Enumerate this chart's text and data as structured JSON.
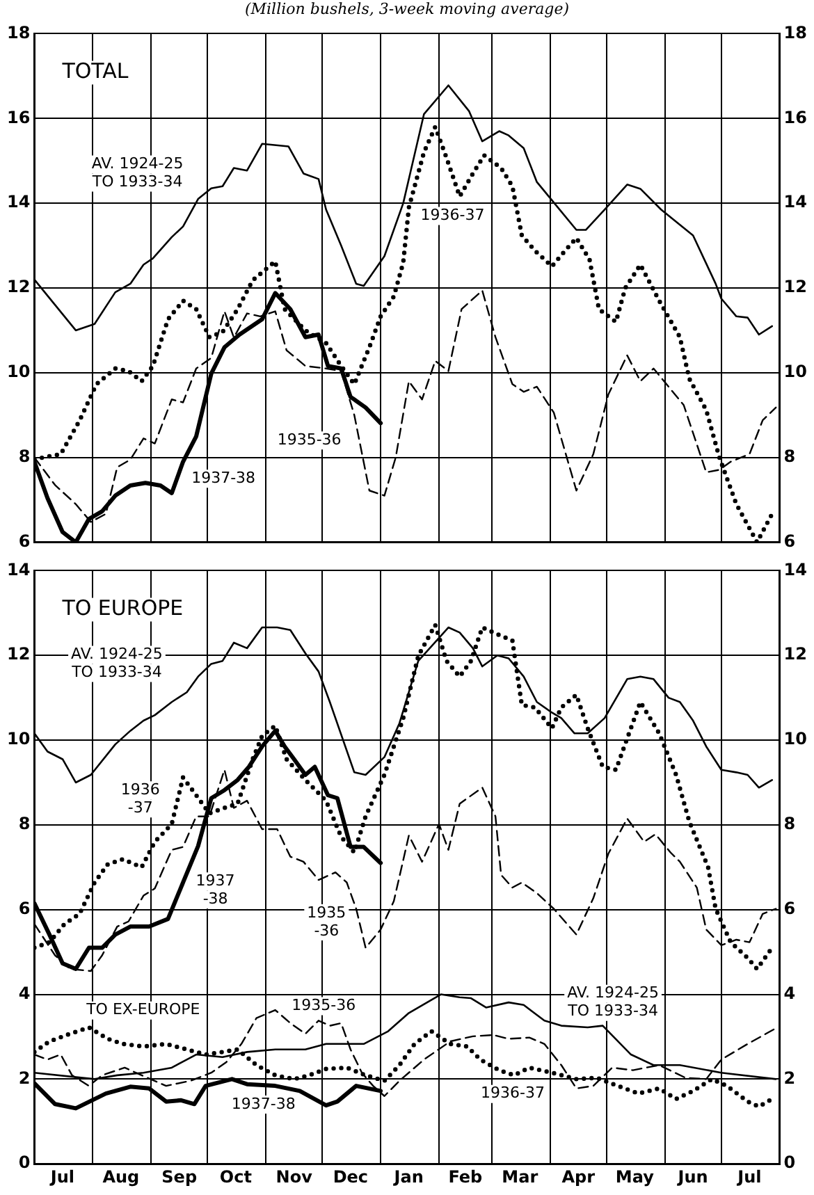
{
  "chart_data": [
    {
      "type": "line",
      "title": "TOTAL",
      "subtitle": "(Million bushels, 3-week moving average)",
      "xlim": [
        "1937-07-01",
        "1938-08-01"
      ],
      "xticks": [
        {
          "value": "1937-07-01",
          "label": null
        },
        {
          "value": "1937-08-01",
          "label": null
        },
        {
          "value": "1937-09-01",
          "label": null
        },
        {
          "value": "1937-10-01",
          "label": null
        },
        {
          "value": "1937-11-01",
          "label": null
        },
        {
          "value": "1937-12-01",
          "label": null
        },
        {
          "value": "1938-01-01",
          "label": null
        },
        {
          "value": "1938-02-01",
          "label": null
        },
        {
          "value": "1938-03-01",
          "label": null
        },
        {
          "value": "1938-04-01",
          "label": null
        },
        {
          "value": "1938-05-01",
          "label": null
        },
        {
          "value": "1938-06-01",
          "label": null
        },
        {
          "value": "1938-07-01",
          "label": null
        },
        {
          "value": "1938-08-01",
          "label": null
        }
      ],
      "ylim": [
        6,
        18
      ],
      "yticks": [
        6,
        8,
        10,
        12,
        14,
        16,
        18
      ],
      "y2lim": [
        6,
        18
      ],
      "y2ticks": [
        6,
        8,
        10,
        12,
        14,
        16,
        18
      ],
      "grid": true,
      "legend": false,
      "tick_labels": "y",
      "marker": "none",
      "series": [
        {
          "name": "AV. 1924-25\nTO 1933-34",
          "color": "#000000",
          "line_style": "solid",
          "x": [
            "1937-07-01",
            "1937-07-23",
            "1937-08-02",
            "1937-08-13",
            "1937-08-21",
            "1937-08-28",
            "1937-09-02",
            "1937-09-12",
            "1937-09-18",
            "1937-09-26",
            "1937-10-03",
            "1937-10-09",
            "1937-10-15",
            "1937-10-22",
            "1937-10-30",
            "1937-11-13",
            "1937-11-21",
            "1937-11-29",
            "1937-12-03",
            "1937-12-11",
            "1937-12-19",
            "1937-12-23",
            "1938-01-03",
            "1938-01-13",
            "1938-01-24",
            "1938-02-06",
            "1938-02-17",
            "1938-02-24",
            "1938-03-05",
            "1938-03-10",
            "1938-03-18",
            "1938-03-25",
            "1938-04-02",
            "1938-04-15",
            "1938-04-20",
            "1938-04-30",
            "1938-05-12",
            "1938-05-19",
            "1938-05-30",
            "1938-06-16",
            "1938-06-28",
            "1938-07-01",
            "1938-07-09",
            "1938-07-15",
            "1938-07-21",
            "1938-07-28"
          ],
          "values": [
            12.2,
            11.0,
            11.15,
            11.9,
            12.1,
            12.55,
            12.7,
            13.2,
            13.45,
            14.1,
            14.35,
            14.4,
            14.83,
            14.77,
            15.4,
            15.34,
            14.7,
            14.57,
            13.85,
            13.0,
            12.1,
            12.05,
            12.75,
            14.0,
            16.1,
            16.78,
            16.17,
            15.46,
            15.7,
            15.6,
            15.3,
            14.5,
            14.07,
            13.37,
            13.37,
            13.85,
            14.44,
            14.34,
            13.85,
            13.24,
            12.1,
            11.75,
            11.33,
            11.3,
            10.9,
            11.1
          ]
        },
        {
          "name": "1935-36",
          "color": "#000000",
          "line_style": "dashed",
          "x": [
            "1937-07-01",
            "1937-07-12",
            "1937-07-23",
            "1937-07-31",
            "1937-08-08",
            "1937-08-14",
            "1937-08-21",
            "1937-08-28",
            "1937-09-03",
            "1937-09-12",
            "1937-09-18",
            "1937-09-25",
            "1937-10-03",
            "1937-10-10",
            "1937-10-15",
            "1937-10-22",
            "1937-10-29",
            "1937-11-06",
            "1937-11-12",
            "1937-11-22",
            "1937-12-03",
            "1937-12-11",
            "1937-12-18",
            "1937-12-26",
            "1938-01-03",
            "1938-01-09",
            "1938-01-16",
            "1938-01-23",
            "1938-01-30",
            "1938-02-06",
            "1938-02-13",
            "1938-02-24",
            "1938-03-03",
            "1938-03-12",
            "1938-03-18",
            "1938-03-25",
            "1938-04-03",
            "1938-04-15",
            "1938-04-24",
            "1938-05-02",
            "1938-05-12",
            "1938-05-19",
            "1938-05-26",
            "1938-06-11",
            "1938-06-23",
            "1938-06-30",
            "1938-07-06",
            "1938-07-16",
            "1938-07-23",
            "1938-07-30"
          ],
          "values": [
            8.0,
            7.35,
            6.9,
            6.48,
            6.67,
            7.77,
            7.95,
            8.45,
            8.33,
            9.37,
            9.3,
            10.1,
            10.35,
            11.45,
            10.83,
            11.4,
            11.33,
            11.45,
            10.53,
            10.16,
            10.1,
            10.04,
            9.0,
            7.22,
            7.1,
            8.0,
            9.8,
            9.37,
            10.28,
            10.04,
            11.5,
            11.94,
            10.84,
            9.73,
            9.55,
            9.67,
            9.06,
            7.22,
            8.08,
            9.49,
            10.41,
            9.8,
            10.1,
            9.24,
            7.65,
            7.71,
            7.9,
            8.08,
            8.88,
            9.18
          ]
        },
        {
          "name": "1936-37",
          "color": "#000000",
          "line_style": "dotted",
          "x": [
            "1937-07-01",
            "1937-07-15",
            "1937-07-25",
            "1937-08-03",
            "1937-08-13",
            "1937-08-20",
            "1937-08-27",
            "1937-09-02",
            "1937-09-10",
            "1937-09-18",
            "1937-09-25",
            "1937-10-02",
            "1937-10-09",
            "1937-10-17",
            "1937-10-25",
            "1937-11-06",
            "1937-11-11",
            "1937-11-22",
            "1937-12-03",
            "1937-12-11",
            "1937-12-18",
            "1937-12-26",
            "1938-01-01",
            "1938-01-08",
            "1938-01-13",
            "1938-01-16",
            "1938-01-24",
            "1938-01-30",
            "1938-02-05",
            "1938-02-12",
            "1938-02-19",
            "1938-02-25",
            "1938-03-06",
            "1938-03-12",
            "1938-03-17",
            "1938-03-24",
            "1938-04-02",
            "1938-04-09",
            "1938-04-15",
            "1938-04-22",
            "1938-04-27",
            "1938-05-06",
            "1938-05-11",
            "1938-05-19",
            "1938-05-29",
            "1938-06-09",
            "1938-06-14",
            "1938-06-23",
            "1938-06-30",
            "1938-07-09",
            "1938-07-20",
            "1938-07-28"
          ],
          "values": [
            7.96,
            8.08,
            8.87,
            9.73,
            10.1,
            10.04,
            9.8,
            10.16,
            11.26,
            11.7,
            11.5,
            10.84,
            10.96,
            11.5,
            12.18,
            12.63,
            11.5,
            11.0,
            10.7,
            10.16,
            9.73,
            10.6,
            11.33,
            11.8,
            12.6,
            13.9,
            15.2,
            15.8,
            15.07,
            14.16,
            14.7,
            15.13,
            14.83,
            14.4,
            13.24,
            12.88,
            12.51,
            12.88,
            13.18,
            12.67,
            11.5,
            11.2,
            12.0,
            12.55,
            11.7,
            10.84,
            9.86,
            9.12,
            8.0,
            6.9,
            6.0,
            6.67
          ]
        },
        {
          "name": "1937-38",
          "color": "#000000",
          "line_style": "solid",
          "x": [
            "1937-07-01",
            "1937-07-08",
            "1937-07-16",
            "1937-07-23",
            "1937-07-30",
            "1937-08-06",
            "1937-08-13",
            "1937-08-21",
            "1937-08-29",
            "1937-09-06",
            "1937-09-12",
            "1937-09-18",
            "1937-09-25",
            "1937-10-03",
            "1937-10-10",
            "1937-10-18",
            "1937-10-30",
            "1937-11-06",
            "1937-11-14",
            "1937-11-22",
            "1937-11-29",
            "1937-12-04",
            "1937-12-11",
            "1937-12-16",
            "1937-12-24",
            "1938-01-01"
          ],
          "values": [
            7.9,
            7.04,
            6.24,
            6.0,
            6.55,
            6.73,
            7.1,
            7.34,
            7.4,
            7.34,
            7.16,
            7.9,
            8.5,
            9.98,
            10.6,
            10.9,
            11.26,
            11.88,
            11.5,
            10.84,
            10.9,
            10.16,
            10.1,
            9.43,
            9.18,
            8.81
          ]
        }
      ]
    },
    {
      "type": "line",
      "title": "TO EUROPE",
      "xlim": [
        "1937-07-01",
        "1938-08-01"
      ],
      "xticks": [
        {
          "value": "1937-07-01",
          "label": null
        },
        {
          "value": "1937-07-16",
          "label": "Jul"
        },
        {
          "value": "1937-08-01",
          "label": null
        },
        {
          "value": "1937-08-16",
          "label": "Aug"
        },
        {
          "value": "1937-09-01",
          "label": null
        },
        {
          "value": "1937-09-16",
          "label": "Sep"
        },
        {
          "value": "1937-10-01",
          "label": null
        },
        {
          "value": "1937-10-16",
          "label": "Oct"
        },
        {
          "value": "1937-11-01",
          "label": null
        },
        {
          "value": "1937-11-16",
          "label": "Nov"
        },
        {
          "value": "1937-12-01",
          "label": null
        },
        {
          "value": "1937-12-16",
          "label": "Dec"
        },
        {
          "value": "1938-01-01",
          "label": null
        },
        {
          "value": "1938-01-16",
          "label": "Jan"
        },
        {
          "value": "1938-02-01",
          "label": null
        },
        {
          "value": "1938-02-15",
          "label": "Feb"
        },
        {
          "value": "1938-03-01",
          "label": null
        },
        {
          "value": "1938-03-16",
          "label": "Mar"
        },
        {
          "value": "1938-04-01",
          "label": null
        },
        {
          "value": "1938-04-16",
          "label": "Apr"
        },
        {
          "value": "1938-05-01",
          "label": null
        },
        {
          "value": "1938-05-16",
          "label": "May"
        },
        {
          "value": "1938-06-01",
          "label": null
        },
        {
          "value": "1938-06-16",
          "label": "Jun"
        },
        {
          "value": "1938-07-01",
          "label": null
        },
        {
          "value": "1938-07-16",
          "label": "Jul"
        },
        {
          "value": "1938-08-01",
          "label": null
        }
      ],
      "ylim": [
        0,
        14
      ],
      "yticks": [
        0,
        2,
        4,
        6,
        8,
        10,
        12,
        14
      ],
      "y2lim": [
        0,
        14
      ],
      "y2ticks": [
        0,
        2,
        4,
        6,
        8,
        10,
        12,
        14
      ],
      "grid": true,
      "legend": false,
      "marker": "none",
      "series": [
        {
          "name": "AV. 1924-25\nTO 1933-34",
          "color": "#000000",
          "line_style": "solid",
          "x": [
            "1937-07-01",
            "1937-07-08",
            "1937-07-16",
            "1937-07-23",
            "1937-07-31",
            "1937-08-13",
            "1937-08-21",
            "1937-08-28",
            "1937-09-03",
            "1937-09-12",
            "1937-09-20",
            "1937-09-26",
            "1937-10-03",
            "1937-10-09",
            "1937-10-15",
            "1937-10-22",
            "1937-10-30",
            "1937-11-07",
            "1937-11-14",
            "1937-11-22",
            "1937-11-29",
            "1937-12-05",
            "1937-12-18",
            "1937-12-24",
            "1938-01-03",
            "1938-01-11",
            "1938-01-21",
            "1938-02-06",
            "1938-02-12",
            "1938-02-19",
            "1938-02-24",
            "1938-03-04",
            "1938-03-10",
            "1938-03-18",
            "1938-03-25",
            "1938-04-02",
            "1938-04-07",
            "1938-04-14",
            "1938-04-21",
            "1938-04-30",
            "1938-05-12",
            "1938-05-19",
            "1938-05-26",
            "1938-06-03",
            "1938-06-09",
            "1938-06-16",
            "1938-06-23",
            "1938-07-01",
            "1938-07-09",
            "1938-07-15",
            "1938-07-21",
            "1938-07-28"
          ],
          "values": [
            10.16,
            9.73,
            9.55,
            9.0,
            9.18,
            9.9,
            10.22,
            10.46,
            10.59,
            10.9,
            11.13,
            11.5,
            11.8,
            11.87,
            12.3,
            12.17,
            12.66,
            12.66,
            12.6,
            12.05,
            11.62,
            10.9,
            9.24,
            9.18,
            9.6,
            10.4,
            11.87,
            12.66,
            12.54,
            12.17,
            11.74,
            12.0,
            11.93,
            11.5,
            10.9,
            10.65,
            10.52,
            10.16,
            10.16,
            10.52,
            11.44,
            11.5,
            11.44,
            11.0,
            10.9,
            10.46,
            9.85,
            9.3,
            9.24,
            9.18,
            8.88,
            9.06
          ]
        },
        {
          "name": "1935\n-36",
          "color": "#000000",
          "line_style": "dashed",
          "x": [
            "1937-07-01",
            "1937-07-12",
            "1937-07-20",
            "1937-07-31",
            "1937-08-06",
            "1937-08-14",
            "1937-08-20",
            "1937-08-28",
            "1937-09-03",
            "1937-09-12",
            "1937-09-18",
            "1937-09-25",
            "1937-10-02",
            "1937-10-10",
            "1937-10-15",
            "1937-10-22",
            "1937-10-30",
            "1937-11-07",
            "1937-11-14",
            "1937-11-21",
            "1937-11-29",
            "1937-12-08",
            "1937-12-14",
            "1937-12-19",
            "1937-12-24",
            "1938-01-01",
            "1938-01-08",
            "1938-01-16",
            "1938-01-23",
            "1938-02-01",
            "1938-02-06",
            "1938-02-12",
            "1938-02-24",
            "1938-03-03",
            "1938-03-06",
            "1938-03-12",
            "1938-03-17",
            "1938-03-25",
            "1938-04-03",
            "1938-04-15",
            "1938-04-24",
            "1938-05-02",
            "1938-05-12",
            "1938-05-21",
            "1938-05-27",
            "1938-06-04",
            "1938-06-09",
            "1938-06-18",
            "1938-06-23",
            "1938-07-01",
            "1938-07-09",
            "1938-07-16",
            "1938-07-23",
            "1938-07-30"
          ],
          "values": [
            5.66,
            4.92,
            4.6,
            4.55,
            4.92,
            5.6,
            5.72,
            6.33,
            6.5,
            7.41,
            7.48,
            8.2,
            8.2,
            9.3,
            8.4,
            8.57,
            7.9,
            7.9,
            7.25,
            7.13,
            6.7,
            6.88,
            6.64,
            6.02,
            5.1,
            5.53,
            6.2,
            7.75,
            7.13,
            8.02,
            7.41,
            8.5,
            8.88,
            8.2,
            6.82,
            6.52,
            6.64,
            6.39,
            6.02,
            5.41,
            6.27,
            7.32,
            8.15,
            7.6,
            7.78,
            7.35,
            7.13,
            6.52,
            5.53,
            5.16,
            5.29,
            5.23,
            5.9,
            6.02
          ]
        },
        {
          "name": "1936\n-37",
          "color": "#000000",
          "line_style": "dotted",
          "x": [
            "1937-07-01",
            "1937-07-09",
            "1937-07-17",
            "1937-07-25",
            "1937-08-02",
            "1937-08-09",
            "1937-08-17",
            "1937-08-27",
            "1937-09-03",
            "1937-09-12",
            "1937-09-18",
            "1937-09-25",
            "1937-10-02",
            "1937-10-10",
            "1937-10-17",
            "1937-10-25",
            "1937-10-30",
            "1937-11-06",
            "1937-11-12",
            "1937-11-22",
            "1937-12-03",
            "1937-12-11",
            "1937-12-18",
            "1937-12-24",
            "1938-01-03",
            "1938-01-13",
            "1938-01-21",
            "1938-01-30",
            "1938-02-05",
            "1938-02-12",
            "1938-02-18",
            "1938-02-24",
            "1938-03-05",
            "1938-03-12",
            "1938-03-17",
            "1938-03-24",
            "1938-04-02",
            "1938-04-07",
            "1938-04-15",
            "1938-04-21",
            "1938-04-29",
            "1938-05-06",
            "1938-05-12",
            "1938-05-19",
            "1938-05-29",
            "1938-06-07",
            "1938-06-14",
            "1938-06-24",
            "1938-06-28",
            "1938-07-06",
            "1938-07-15",
            "1938-07-20",
            "1938-07-28"
          ],
          "values": [
            5.1,
            5.23,
            5.66,
            5.9,
            6.64,
            7.07,
            7.19,
            7.0,
            7.6,
            8.02,
            9.12,
            8.7,
            8.27,
            8.4,
            8.5,
            9.55,
            10.1,
            10.34,
            9.55,
            9.06,
            8.57,
            7.72,
            7.35,
            8.2,
            9.18,
            10.52,
            11.99,
            12.72,
            11.87,
            11.5,
            11.87,
            12.66,
            12.48,
            12.35,
            10.83,
            10.77,
            10.28,
            10.77,
            11.07,
            10.28,
            9.37,
            9.3,
            10.04,
            10.9,
            10.16,
            9.18,
            8.08,
            7.0,
            6.02,
            5.23,
            4.86,
            4.6,
            5.1
          ]
        },
        {
          "name": "1937\n-38",
          "color": "#000000",
          "line_style": "solid",
          "x": [
            "1937-07-01",
            "1937-07-09",
            "1937-07-16",
            "1937-07-23",
            "1937-07-30",
            "1937-08-06",
            "1937-08-13",
            "1937-08-21",
            "1937-08-31",
            "1937-09-10",
            "1937-09-18",
            "1937-09-26",
            "1937-10-03",
            "1937-10-10",
            "1937-10-17",
            "1937-10-23",
            "1937-10-30",
            "1937-11-06",
            "1937-11-11",
            "1937-11-16",
            "1937-11-22",
            "1937-11-27",
            "1937-12-04",
            "1937-12-09",
            "1937-12-16",
            "1937-12-23",
            "1938-01-01"
          ],
          "values": [
            6.15,
            5.41,
            4.73,
            4.6,
            5.1,
            5.1,
            5.41,
            5.6,
            5.6,
            5.78,
            6.64,
            7.5,
            8.63,
            8.82,
            9.06,
            9.37,
            9.85,
            10.22,
            9.85,
            9.55,
            9.18,
            9.37,
            8.7,
            8.63,
            7.48,
            7.48,
            7.1
          ]
        },
        {
          "name": "AV. 1924-25\nTO 1933-34",
          "color": "#000000",
          "line_style": "solid",
          "x": [
            "1937-07-01",
            "1937-08-02",
            "1937-08-14",
            "1937-08-28",
            "1937-09-12",
            "1937-09-25",
            "1937-10-09",
            "1937-10-22",
            "1937-11-06",
            "1937-11-22",
            "1937-12-03",
            "1937-12-23",
            "1938-01-05",
            "1938-01-16",
            "1938-02-02",
            "1938-02-12",
            "1938-02-18",
            "1938-02-26",
            "1938-03-10",
            "1938-03-18",
            "1938-03-29",
            "1938-04-07",
            "1938-04-21",
            "1938-04-29",
            "1938-05-14",
            "1938-05-26",
            "1938-06-09",
            "1938-07-01",
            "1938-07-30"
          ],
          "values": [
            2.15,
            2.0,
            2.09,
            2.15,
            2.27,
            2.58,
            2.52,
            2.64,
            2.7,
            2.7,
            2.83,
            2.83,
            3.13,
            3.56,
            4.0,
            3.93,
            3.91,
            3.69,
            3.81,
            3.75,
            3.38,
            3.26,
            3.22,
            3.26,
            2.58,
            2.33,
            2.33,
            2.15,
            2.0
          ]
        },
        {
          "name": "1935-36",
          "color": "#000000",
          "line_style": "dashed",
          "x": [
            "1937-07-01",
            "1937-07-08",
            "1937-07-15",
            "1937-07-21",
            "1937-07-30",
            "1937-08-06",
            "1937-08-18",
            "1937-08-27",
            "1937-09-09",
            "1937-09-22",
            "1937-10-03",
            "1937-10-11",
            "1937-10-19",
            "1937-10-27",
            "1937-11-06",
            "1937-11-14",
            "1937-11-22",
            "1937-11-29",
            "1937-12-05",
            "1937-12-11",
            "1937-12-16",
            "1937-12-22",
            "1937-12-28",
            "1938-01-03",
            "1938-01-11",
            "1938-01-24",
            "1938-02-07",
            "1938-02-19",
            "1938-03-02",
            "1938-03-10",
            "1938-03-21",
            "1938-03-29",
            "1938-04-07",
            "1938-04-15",
            "1938-04-24",
            "1938-05-04",
            "1938-05-15",
            "1938-05-29",
            "1938-06-12",
            "1938-06-23",
            "1938-07-01",
            "1938-07-15",
            "1938-07-30"
          ],
          "values": [
            2.58,
            2.46,
            2.58,
            2.09,
            1.84,
            2.09,
            2.27,
            2.09,
            1.84,
            1.96,
            2.15,
            2.4,
            2.83,
            3.44,
            3.63,
            3.32,
            3.07,
            3.38,
            3.26,
            3.32,
            2.7,
            2.15,
            1.84,
            1.6,
            1.96,
            2.46,
            2.89,
            3.01,
            3.04,
            2.95,
            2.98,
            2.83,
            2.33,
            1.78,
            1.84,
            2.27,
            2.21,
            2.33,
            2.03,
            2.0,
            2.46,
            2.83,
            3.2
          ]
        },
        {
          "name": "1936-37",
          "color": "#000000",
          "line_style": "dotted",
          "x": [
            "1937-07-01",
            "1937-07-09",
            "1937-07-20",
            "1937-07-30",
            "1937-08-09",
            "1937-08-17",
            "1937-08-28",
            "1937-09-09",
            "1937-09-20",
            "1937-09-30",
            "1937-10-09",
            "1937-10-17",
            "1937-10-27",
            "1937-11-06",
            "1937-11-16",
            "1937-11-24",
            "1937-12-03",
            "1937-12-14",
            "1937-12-24",
            "1938-01-03",
            "1938-01-11",
            "1938-01-19",
            "1938-01-28",
            "1938-02-07",
            "1938-02-16",
            "1938-02-23",
            "1938-03-05",
            "1938-03-13",
            "1938-03-21",
            "1938-04-02",
            "1938-04-15",
            "1938-04-26",
            "1938-05-07",
            "1938-05-18",
            "1938-05-29",
            "1938-06-07",
            "1938-06-16",
            "1938-06-26",
            "1938-07-04",
            "1938-07-15",
            "1938-07-21",
            "1938-07-28"
          ],
          "values": [
            2.64,
            2.89,
            3.07,
            3.22,
            2.95,
            2.83,
            2.77,
            2.83,
            2.7,
            2.58,
            2.64,
            2.7,
            2.33,
            2.09,
            2.0,
            2.09,
            2.24,
            2.27,
            2.09,
            1.96,
            2.33,
            2.83,
            3.13,
            2.83,
            2.77,
            2.46,
            2.21,
            2.09,
            2.27,
            2.15,
            2.0,
            2.03,
            1.84,
            1.66,
            1.78,
            1.53,
            1.72,
            2.0,
            1.84,
            1.47,
            1.35,
            1.53
          ]
        },
        {
          "name": "1937-38",
          "color": "#000000",
          "line_style": "solid",
          "x": [
            "1937-07-01",
            "1937-07-12",
            "1937-07-23",
            "1937-08-08",
            "1937-08-21",
            "1937-08-31",
            "1937-09-09",
            "1937-09-17",
            "1937-09-24",
            "1937-09-30",
            "1937-10-14",
            "1937-10-22",
            "1937-11-06",
            "1937-11-19",
            "1937-12-03",
            "1937-12-09",
            "1937-12-19",
            "1938-01-01"
          ],
          "values": [
            1.9,
            1.41,
            1.31,
            1.66,
            1.82,
            1.78,
            1.47,
            1.5,
            1.41,
            1.84,
            2.0,
            1.88,
            1.84,
            1.72,
            1.38,
            1.47,
            1.84,
            1.72
          ]
        }
      ],
      "annotations": [
        "TO EX-EUROPE"
      ]
    }
  ]
}
